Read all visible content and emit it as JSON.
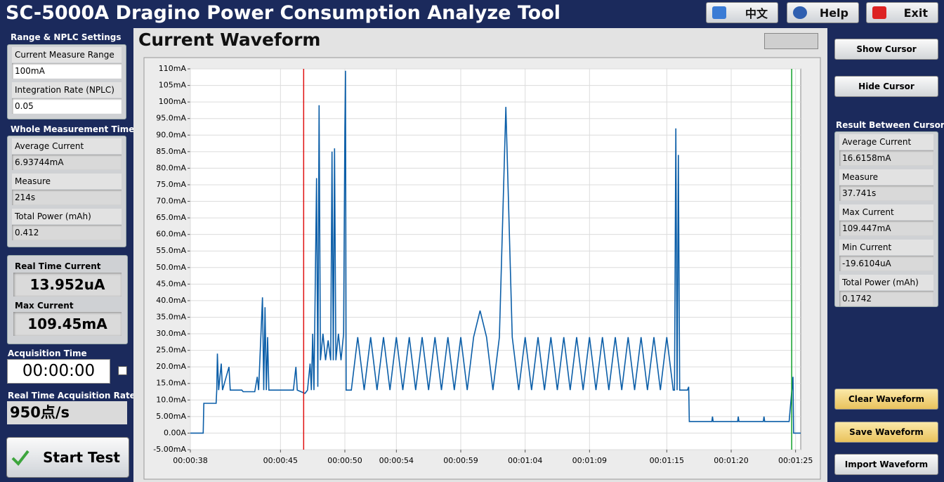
{
  "header": {
    "title": "SC-5000A Dragino Power Consumption Analyze Tool",
    "buttons": [
      "中文",
      "Help",
      "Exit"
    ]
  },
  "left_panel": {
    "range_heading": "Range & NPLC Settings",
    "range_fields": [
      {
        "label": "Current Measure Range",
        "value": "100mA"
      },
      {
        "label": "Integration Rate (NPLC)",
        "value": "0.05"
      }
    ],
    "whole_heading": "Whole Measurement Time",
    "whole_fields": [
      {
        "label": "Average Current",
        "value": "6.93744mA"
      },
      {
        "label": "Measure",
        "value": "214s"
      },
      {
        "label": "Total Power (mAh)",
        "value": "0.412"
      }
    ],
    "realtime_fields": [
      {
        "label": "Real Time Current",
        "value": "13.952uA"
      },
      {
        "label": "Max Current",
        "value": "109.45mA"
      }
    ],
    "acq_time_label": "Acquisition Time",
    "acq_time": "00:00:00",
    "rate_label": "Real Time Acquisition Rate",
    "rate": "950点/s",
    "start_button": "Start Test"
  },
  "right_panel": {
    "cursor_buttons": [
      "Show Cursor",
      "Hide Cursor"
    ],
    "result_heading": "Result Between Cursors",
    "result_fields": [
      {
        "label": "Average Current",
        "value": "16.6158mA"
      },
      {
        "label": "Measure",
        "value": "37.741s"
      },
      {
        "label": "Max Current",
        "value": "109.447mA"
      },
      {
        "label": "Min Current",
        "value": "-19.6104uA"
      },
      {
        "label": "Total Power (mAh)",
        "value": "0.1742"
      }
    ],
    "waveform_buttons": [
      "Clear Waveform",
      "Save Waveform",
      "Import Waveform"
    ]
  },
  "chart_data": {
    "type": "line",
    "title": "Current Waveform",
    "color": "#0b5ea8",
    "grid": true,
    "x": [
      38,
      39,
      39.05,
      40,
      40.05,
      40.1,
      40.2,
      40.4,
      40.5,
      41,
      41.1,
      42,
      42.1,
      43,
      43.2,
      43.3,
      43.6,
      43.7,
      43.8,
      43.9,
      44,
      44.1,
      45,
      46,
      46.2,
      46.3,
      46.9,
      47.1,
      47.3,
      47.4,
      47.5,
      47.6,
      47.8,
      47.9,
      48,
      48.1,
      48.3,
      48.5,
      48.7,
      48.9,
      49,
      49.1,
      49.2,
      49.3,
      49.5,
      49.7,
      49.9,
      50,
      50.05,
      50.1,
      50.5,
      51,
      51.5,
      52,
      52.5,
      53,
      53.5,
      54,
      54.5,
      55,
      55.5,
      56,
      56.5,
      57,
      57.5,
      58,
      58.5,
      59,
      59.5,
      60,
      60.5,
      61,
      61.5,
      62,
      62.5,
      63,
      63.5,
      64,
      64.5,
      65,
      65.5,
      66,
      66.5,
      67,
      67.5,
      68,
      68.5,
      69,
      69.5,
      70,
      70.5,
      71,
      71.5,
      72,
      72.5,
      73,
      73.5,
      74,
      74.5,
      75,
      75.5,
      75.6,
      75.7,
      75.8,
      75.9,
      76,
      76.6,
      76.7,
      76.75,
      78.5,
      78.55,
      78.6,
      80.5,
      80.55,
      80.6,
      82.5,
      82.55,
      82.6,
      84.5,
      84.8,
      84.85,
      85.4
    ],
    "values": [
      0,
      0,
      9,
      9,
      13,
      24,
      13,
      21,
      13,
      20,
      13,
      13,
      12.5,
      12.5,
      17,
      13,
      41,
      13,
      38,
      13,
      29,
      13,
      13,
      13,
      20,
      13,
      12,
      13,
      21,
      13,
      30,
      13,
      77,
      14,
      99,
      22,
      30,
      22,
      28,
      22,
      85,
      22,
      86,
      22,
      30,
      22,
      30,
      92,
      109.4,
      13,
      13,
      29,
      13,
      29,
      13,
      29,
      13,
      29,
      13,
      29,
      13,
      29,
      13,
      29,
      13,
      29,
      13,
      29,
      13,
      29,
      37,
      29,
      13,
      29,
      98.5,
      29,
      13,
      29,
      13,
      29,
      13,
      29,
      13,
      29,
      13,
      29,
      13,
      29,
      13,
      29,
      13,
      29,
      13,
      29,
      13,
      29,
      13,
      29,
      13,
      29,
      13,
      13,
      92,
      13,
      84,
      13,
      13,
      14,
      3.5,
      3.5,
      5,
      3.5,
      3.5,
      5,
      3.5,
      3.5,
      5,
      3.5,
      3.5,
      17,
      0,
      0
    ],
    "cursor_x": [
      46.8,
      84.7
    ],
    "xlim": [
      38,
      85.4
    ],
    "xticks": [
      {
        "value": 38,
        "label": "00:00:38"
      },
      {
        "value": 45,
        "label": "00:00:45"
      },
      {
        "value": 50,
        "label": "00:00:50"
      },
      {
        "value": 54,
        "label": "00:00:54"
      },
      {
        "value": 59,
        "label": "00:00:59"
      },
      {
        "value": 64,
        "label": "00:01:04"
      },
      {
        "value": 69,
        "label": "00:01:09"
      },
      {
        "value": 75,
        "label": "00:01:15"
      },
      {
        "value": 80,
        "label": "00:01:20"
      },
      {
        "value": 85,
        "label": "00:01:25"
      }
    ],
    "ylim": [
      -5,
      110
    ],
    "yticks": [
      {
        "value": -5,
        "label": "-5.00mA"
      },
      {
        "value": 0,
        "label": "0.00A"
      },
      {
        "value": 5,
        "label": "5.00mA"
      },
      {
        "value": 10,
        "label": "10.0mA"
      },
      {
        "value": 15,
        "label": "15.0mA"
      },
      {
        "value": 20,
        "label": "20.0mA"
      },
      {
        "value": 25,
        "label": "25.0mA"
      },
      {
        "value": 30,
        "label": "30.0mA"
      },
      {
        "value": 35,
        "label": "35.0mA"
      },
      {
        "value": 40,
        "label": "40.0mA"
      },
      {
        "value": 45,
        "label": "45.0mA"
      },
      {
        "value": 50,
        "label": "50.0mA"
      },
      {
        "value": 55,
        "label": "55.0mA"
      },
      {
        "value": 60,
        "label": "60.0mA"
      },
      {
        "value": 65,
        "label": "65.0mA"
      },
      {
        "value": 70,
        "label": "70.0mA"
      },
      {
        "value": 75,
        "label": "75.0mA"
      },
      {
        "value": 80,
        "label": "80.0mA"
      },
      {
        "value": 85,
        "label": "85.0mA"
      },
      {
        "value": 90,
        "label": "90.0mA"
      },
      {
        "value": 95,
        "label": "95.0mA"
      },
      {
        "value": 100,
        "label": "100mA"
      },
      {
        "value": 105,
        "label": "105mA"
      },
      {
        "value": 110,
        "label": "110mA"
      }
    ]
  }
}
